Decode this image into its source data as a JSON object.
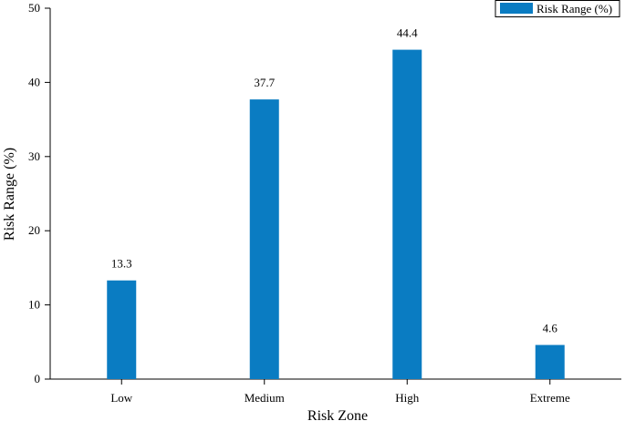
{
  "chart_data": {
    "type": "bar",
    "categories": [
      "Low",
      "Medium",
      "High",
      "Extreme"
    ],
    "series": [
      {
        "name": "Risk Range (%)",
        "values": [
          13.3,
          37.7,
          44.4,
          4.6
        ],
        "color": "#0a7cc2"
      }
    ],
    "data_labels": [
      "13.3",
      "37.7",
      "44.4",
      "4.6"
    ],
    "xlabel": "Risk Zone",
    "ylabel": "Risk Range (%)",
    "ylim": [
      0,
      50
    ],
    "yticks": [
      0,
      10,
      20,
      30,
      40,
      50
    ],
    "grid": false,
    "legend_position": "top-right"
  }
}
